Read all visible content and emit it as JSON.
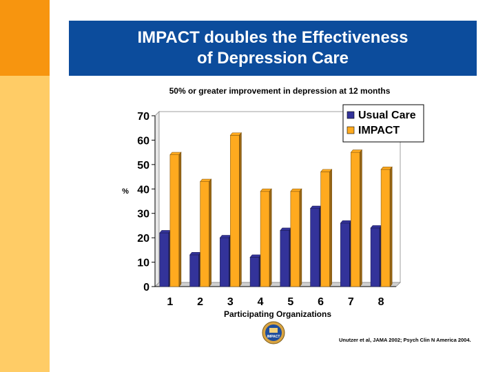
{
  "slide": {
    "title_line1": "IMPACT doubles the Effectiveness",
    "title_line2": "of Depression Care",
    "footnote": "Unutzer et al, JAMA 2002; Psych Clin N America 2004.",
    "logo_text": "IMPACT",
    "colors": {
      "banner": "#0c4c9c",
      "side_dark": "#f7950f",
      "side_light": "#ffcc66"
    }
  },
  "chart_data": {
    "type": "bar",
    "title": "50% or greater improvement in depression at 12 months",
    "xlabel": "Participating Organizations",
    "ylabel": "%",
    "ylim": [
      0,
      70
    ],
    "yticks": [
      0,
      10,
      20,
      30,
      40,
      50,
      60,
      70
    ],
    "categories": [
      "1",
      "2",
      "3",
      "4",
      "5",
      "6",
      "7",
      "8"
    ],
    "series": [
      {
        "name": "Usual Care",
        "color": "#33339a",
        "values": [
          22,
          13,
          20,
          12,
          23,
          32,
          26,
          24
        ]
      },
      {
        "name": "IMPACT",
        "color": "#ffaa1f",
        "values": [
          54,
          43,
          62,
          39,
          39,
          47,
          55,
          48
        ]
      }
    ],
    "legend_position": "top-right",
    "grid": false
  }
}
